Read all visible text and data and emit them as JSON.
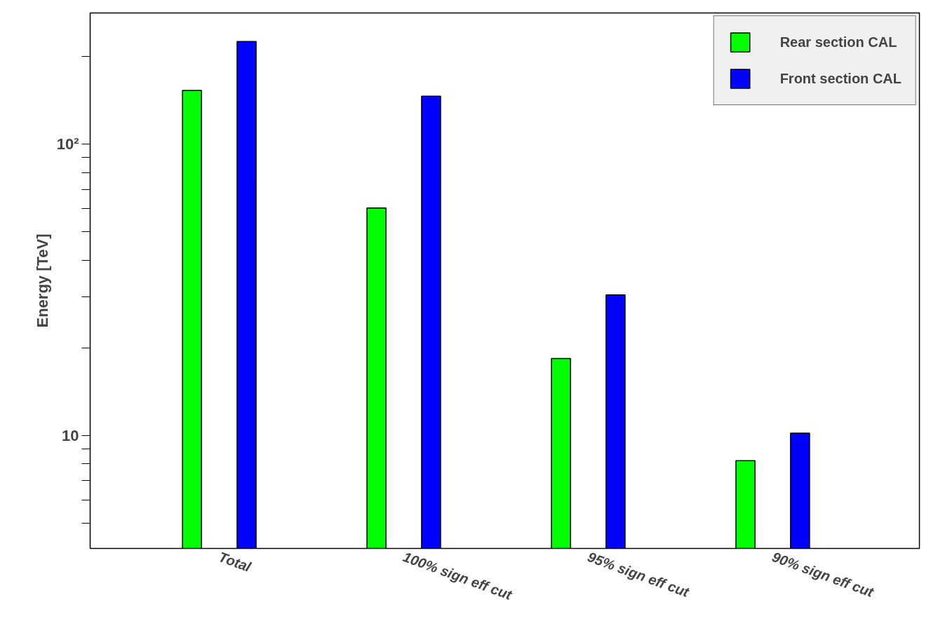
{
  "chart_data": {
    "type": "bar",
    "ylabel": "Energy [TeV]",
    "categories": [
      "Total",
      "100% sign eff cut",
      "95% sign eff cut",
      "90% sign eff cut"
    ],
    "series": [
      {
        "name": "Rear section CAL",
        "color": "#00ff00",
        "values": [
          153,
          60.4,
          18.4,
          8.2
        ]
      },
      {
        "name": "Front section CAL",
        "color": "#0000ff",
        "values": [
          225,
          146,
          30.4,
          10.2
        ]
      }
    ],
    "log": "y",
    "ylim": [
      4.1,
      282
    ],
    "yticks": [
      {
        "value": 5,
        "label": null
      },
      {
        "value": 6,
        "label": null
      },
      {
        "value": 7,
        "label": null
      },
      {
        "value": 8,
        "label": null
      },
      {
        "value": 9,
        "label": null
      },
      10,
      {
        "value": 20,
        "label": null
      },
      {
        "value": 30,
        "label": null
      },
      {
        "value": 40,
        "label": null
      },
      {
        "value": 50,
        "label": null
      },
      {
        "value": 60,
        "label": null
      },
      {
        "value": 70,
        "label": null
      },
      {
        "value": 80,
        "label": null
      },
      {
        "value": 90,
        "label": null
      },
      {
        "value": 100,
        "label": "10²"
      },
      {
        "value": 200,
        "label": null
      }
    ],
    "grid": false,
    "legend": "top right"
  }
}
